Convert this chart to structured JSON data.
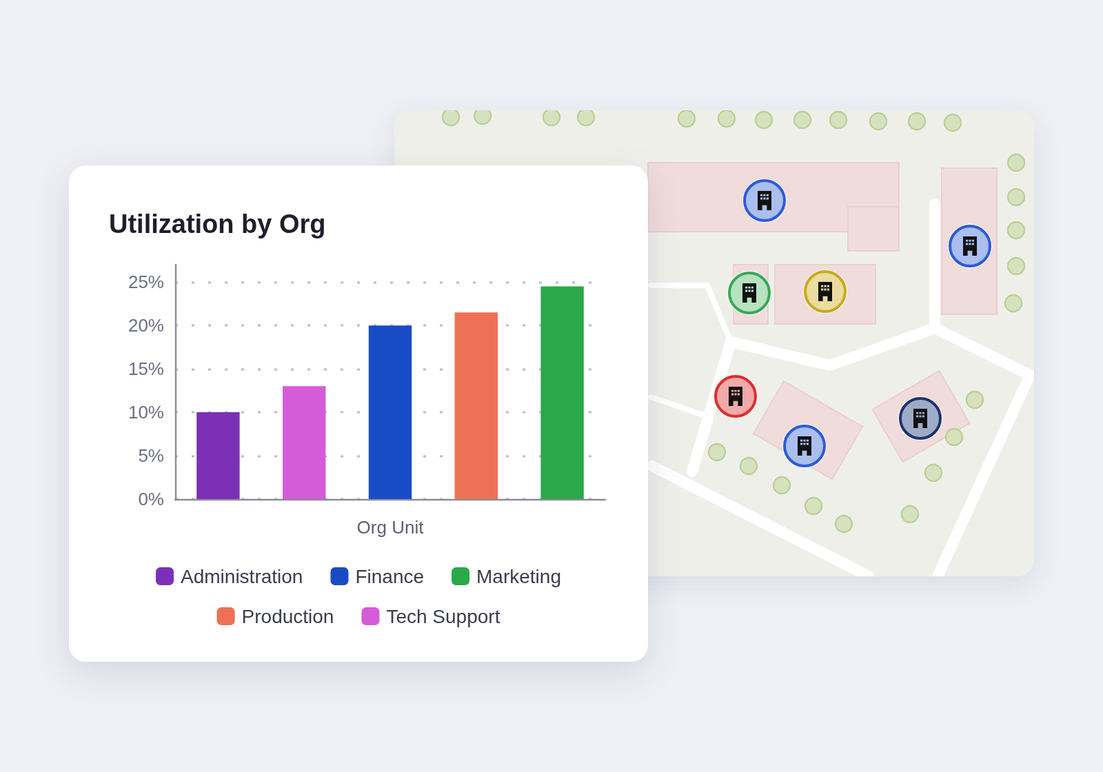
{
  "chart_data": {
    "type": "bar",
    "title": "Utilization by Org",
    "xlabel": "Org Unit",
    "categories": [
      null,
      null,
      null,
      null,
      null
    ],
    "series": [
      {
        "name": "Administration",
        "color": "#7b30b5",
        "values": [
          10,
          null,
          null,
          null,
          null
        ]
      },
      {
        "name": "Finance",
        "color": "#1a4bc6",
        "values": [
          null,
          null,
          20,
          null,
          null
        ]
      },
      {
        "name": "Marketing",
        "color": "#2ba84a",
        "values": [
          null,
          null,
          null,
          null,
          24.5
        ]
      },
      {
        "name": "Production",
        "color": "#ee7157",
        "values": [
          null,
          null,
          null,
          21.5,
          null
        ]
      },
      {
        "name": "Tech Support",
        "color": "#d65bd9",
        "values": [
          null,
          13,
          null,
          null,
          null
        ]
      }
    ],
    "ylim": [
      0,
      27
    ],
    "yticks": [
      {
        "value": 0,
        "label": "0%"
      },
      {
        "value": 5,
        "label": "5%"
      },
      {
        "value": 10,
        "label": "10%"
      },
      {
        "value": 15,
        "label": "15%"
      },
      {
        "value": 20,
        "label": "20%"
      },
      {
        "value": 25,
        "label": "25%"
      }
    ],
    "grid": "y",
    "legend": "bottom",
    "tick_labels": "y"
  }
}
